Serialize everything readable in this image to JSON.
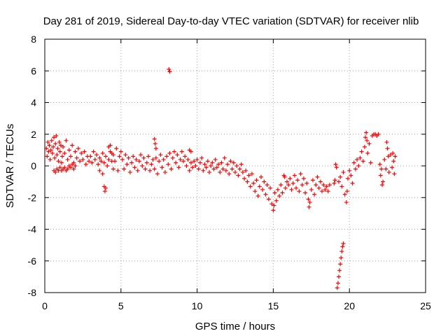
{
  "chart_data": {
    "type": "scatter",
    "title": "Day 281 of 2019, Sidereal Day-to-day VTEC variation (SDTVAR) for receiver nlib",
    "xlabel": "GPS time / hours",
    "ylabel": "SDTVAR / TECUs",
    "xlim": [
      0,
      25
    ],
    "ylim": [
      -8,
      8
    ],
    "xticks": [
      0,
      5,
      10,
      15,
      20,
      25
    ],
    "yticks": [
      -8,
      -6,
      -4,
      -2,
      0,
      2,
      4,
      6,
      8
    ],
    "xtick_labels": [
      "0",
      "5",
      "10",
      "15",
      "20",
      "25"
    ],
    "ytick_labels": [
      "-8",
      "-6",
      "-4",
      "-2",
      "0",
      "2",
      "4",
      "6",
      "8"
    ],
    "grid": true,
    "marker": "+",
    "marker_color": "#ff0000",
    "series": [
      {
        "name": "SDTVAR",
        "points": [
          [
            0.1,
            1.1
          ],
          [
            0.15,
            0.6
          ],
          [
            0.2,
            1.5
          ],
          [
            0.25,
            0.9
          ],
          [
            0.3,
            1.3
          ],
          [
            0.35,
            0.4
          ],
          [
            0.4,
            1.0
          ],
          [
            0.45,
            1.6
          ],
          [
            0.5,
            0.8
          ],
          [
            0.55,
            1.2
          ],
          [
            0.6,
            1.8
          ],
          [
            0.65,
            0.5
          ],
          [
            0.7,
            1.4
          ],
          [
            0.75,
            1.9
          ],
          [
            0.8,
            0.7
          ],
          [
            0.85,
            1.1
          ],
          [
            0.9,
            0.3
          ],
          [
            0.95,
            1.5
          ],
          [
            1.0,
            0.9
          ],
          [
            1.05,
            1.3
          ],
          [
            1.1,
            0.2
          ],
          [
            1.15,
            0.6
          ],
          [
            1.2,
            1.2
          ],
          [
            1.3,
            0.8
          ],
          [
            1.4,
            1.6
          ],
          [
            1.5,
            0.4
          ],
          [
            1.6,
            1.0
          ],
          [
            1.7,
            0.6
          ],
          [
            1.8,
            1.3
          ],
          [
            1.9,
            0.2
          ],
          [
            2.0,
            0.9
          ],
          [
            2.1,
            0.5
          ],
          [
            2.2,
            1.1
          ],
          [
            2.3,
            0.3
          ],
          [
            2.4,
            0.8
          ],
          [
            2.5,
            0.4
          ],
          [
            2.6,
            0.9
          ],
          [
            2.7,
            0.1
          ],
          [
            2.8,
            0.6
          ],
          [
            2.9,
            0.3
          ],
          [
            0.6,
            -0.3
          ],
          [
            0.7,
            -0.4
          ],
          [
            0.8,
            -0.2
          ],
          [
            0.9,
            -0.3
          ],
          [
            1.0,
            -0.1
          ],
          [
            1.1,
            -0.3
          ],
          [
            1.2,
            -0.2
          ],
          [
            1.3,
            -0.1
          ],
          [
            1.4,
            -0.3
          ],
          [
            1.5,
            -0.2
          ],
          [
            1.6,
            0.0
          ],
          [
            1.7,
            -0.1
          ],
          [
            1.8,
            0.1
          ],
          [
            1.9,
            -0.2
          ],
          [
            2.0,
            0.0
          ],
          [
            3.0,
            0.6
          ],
          [
            3.1,
            0.2
          ],
          [
            3.2,
            0.9
          ],
          [
            3.3,
            0.4
          ],
          [
            3.4,
            0.7
          ],
          [
            3.5,
            0.1
          ],
          [
            3.6,
            0.5
          ],
          [
            3.7,
            0.3
          ],
          [
            3.8,
            0.8
          ],
          [
            3.9,
            0.2
          ],
          [
            4.0,
            0.6
          ],
          [
            4.1,
            0.0
          ],
          [
            4.2,
            0.4
          ],
          [
            4.3,
            0.9
          ],
          [
            4.4,
            0.3
          ],
          [
            4.5,
            0.7
          ],
          [
            3.6,
            -0.3
          ],
          [
            3.8,
            -0.5
          ],
          [
            3.9,
            -1.3
          ],
          [
            3.95,
            -1.6
          ],
          [
            4.0,
            -1.4
          ],
          [
            4.2,
            1.2
          ],
          [
            4.3,
            1.3
          ],
          [
            4.4,
            0.8
          ],
          [
            4.5,
            -0.2
          ],
          [
            4.6,
            0.3
          ],
          [
            4.7,
            1.1
          ],
          [
            4.8,
            -0.3
          ],
          [
            4.9,
            0.6
          ],
          [
            5.0,
            0.9
          ],
          [
            5.1,
            0.4
          ],
          [
            5.2,
            -0.2
          ],
          [
            5.3,
            0.7
          ],
          [
            5.4,
            0.1
          ],
          [
            5.5,
            0.5
          ],
          [
            5.6,
            -0.4
          ],
          [
            5.7,
            0.2
          ],
          [
            5.8,
            0.6
          ],
          [
            5.9,
            -0.1
          ],
          [
            6.0,
            0.4
          ],
          [
            6.1,
            -0.3
          ],
          [
            6.2,
            0.3
          ],
          [
            6.3,
            0.7
          ],
          [
            6.4,
            0.0
          ],
          [
            6.5,
            0.5
          ],
          [
            6.6,
            -0.2
          ],
          [
            6.7,
            0.2
          ],
          [
            6.8,
            0.6
          ],
          [
            6.9,
            -0.3
          ],
          [
            7.0,
            0.1
          ],
          [
            7.1,
            0.4
          ],
          [
            7.2,
            1.7
          ],
          [
            7.25,
            1.4
          ],
          [
            7.3,
            1.1
          ],
          [
            7.2,
            -0.2
          ],
          [
            7.3,
            0.5
          ],
          [
            7.4,
            -0.5
          ],
          [
            7.5,
            0.3
          ],
          [
            7.6,
            0.7
          ],
          [
            7.7,
            -0.1
          ],
          [
            7.8,
            0.4
          ],
          [
            7.9,
            -0.4
          ],
          [
            8.0,
            0.6
          ],
          [
            8.1,
            0.1
          ],
          [
            8.2,
            0.8
          ],
          [
            8.3,
            -0.2
          ],
          [
            8.4,
            0.5
          ],
          [
            8.5,
            0.9
          ],
          [
            8.6,
            0.2
          ],
          [
            8.7,
            0.7
          ],
          [
            8.8,
            -0.1
          ],
          [
            8.9,
            0.4
          ],
          [
            9.0,
            0.9
          ],
          [
            9.1,
            0.3
          ],
          [
            9.2,
            0.6
          ],
          [
            9.3,
            0.0
          ],
          [
            9.4,
            0.4
          ],
          [
            8.15,
            6.1
          ],
          [
            8.2,
            5.95
          ],
          [
            9.5,
            1.0
          ],
          [
            9.6,
            0.9
          ],
          [
            9.5,
            -0.3
          ],
          [
            9.6,
            0.2
          ],
          [
            9.7,
            -0.1
          ],
          [
            9.8,
            0.3
          ],
          [
            9.9,
            0.0
          ],
          [
            10.0,
            0.4
          ],
          [
            10.1,
            -0.2
          ],
          [
            10.2,
            0.2
          ],
          [
            10.3,
            0.5
          ],
          [
            10.4,
            -0.3
          ],
          [
            10.5,
            0.1
          ],
          [
            10.6,
            -0.1
          ],
          [
            10.7,
            0.3
          ],
          [
            10.8,
            -0.4
          ],
          [
            10.9,
            0.0
          ],
          [
            11.0,
            0.2
          ],
          [
            11.1,
            -0.2
          ],
          [
            11.2,
            0.4
          ],
          [
            11.3,
            -0.1
          ],
          [
            11.4,
            0.1
          ],
          [
            11.5,
            -0.4
          ],
          [
            11.6,
            0.2
          ],
          [
            11.7,
            -0.2
          ],
          [
            11.8,
            0.5
          ],
          [
            11.9,
            -0.3
          ],
          [
            12.0,
            0.1
          ],
          [
            12.1,
            -0.5
          ],
          [
            12.2,
            0.3
          ],
          [
            12.3,
            -0.2
          ],
          [
            12.4,
            0.2
          ],
          [
            12.5,
            -0.4
          ],
          [
            12.6,
            0.0
          ],
          [
            12.7,
            -0.6
          ],
          [
            12.8,
            -0.2
          ],
          [
            12.9,
            0.1
          ],
          [
            13.0,
            -0.4
          ],
          [
            13.1,
            -0.8
          ],
          [
            13.2,
            -0.3
          ],
          [
            13.3,
            -1.0
          ],
          [
            13.4,
            -0.6
          ],
          [
            13.5,
            -1.3
          ],
          [
            13.6,
            -0.5
          ],
          [
            13.7,
            -1.1
          ],
          [
            13.8,
            -1.6
          ],
          [
            13.9,
            -0.9
          ],
          [
            14.0,
            -1.9
          ],
          [
            14.1,
            -1.3
          ],
          [
            14.2,
            -0.7
          ],
          [
            14.3,
            -1.5
          ],
          [
            14.4,
            -1.0
          ],
          [
            14.5,
            -1.8
          ],
          [
            14.6,
            -1.2
          ],
          [
            14.7,
            -2.1
          ],
          [
            14.8,
            -1.4
          ],
          [
            14.9,
            -2.4
          ],
          [
            15.0,
            -2.8
          ],
          [
            15.05,
            -2.5
          ],
          [
            15.1,
            -1.7
          ],
          [
            15.2,
            -2.2
          ],
          [
            15.3,
            -1.5
          ],
          [
            15.4,
            -1.9
          ],
          [
            15.5,
            -1.2
          ],
          [
            15.6,
            -1.7
          ],
          [
            15.7,
            -0.6
          ],
          [
            15.75,
            -0.7
          ],
          [
            15.8,
            -1.4
          ],
          [
            15.9,
            -1.0
          ],
          [
            16.0,
            -1.2
          ],
          [
            16.1,
            -0.8
          ],
          [
            16.2,
            -1.5
          ],
          [
            16.3,
            -1.1
          ],
          [
            16.4,
            -0.6
          ],
          [
            16.5,
            -1.4
          ],
          [
            16.6,
            -0.9
          ],
          [
            16.7,
            -1.6
          ],
          [
            16.8,
            -0.5
          ],
          [
            16.9,
            -1.2
          ],
          [
            17.0,
            -0.8
          ],
          [
            17.1,
            -1.7
          ],
          [
            17.2,
            -1.1
          ],
          [
            17.3,
            -2.1
          ],
          [
            17.35,
            -2.6
          ],
          [
            17.4,
            -2.3
          ],
          [
            17.5,
            -1.5
          ],
          [
            17.6,
            -0.9
          ],
          [
            17.7,
            -1.8
          ],
          [
            17.8,
            -1.2
          ],
          [
            17.9,
            -0.7
          ],
          [
            18.0,
            -1.4
          ],
          [
            18.1,
            -1.0
          ],
          [
            18.2,
            -1.6
          ],
          [
            18.3,
            -1.2
          ],
          [
            18.4,
            -1.5
          ],
          [
            18.5,
            -1.3
          ],
          [
            18.6,
            -1.6
          ],
          [
            18.7,
            -1.2
          ],
          [
            19.0,
            -1.1
          ],
          [
            19.05,
            -0.9
          ],
          [
            19.1,
            0.1
          ],
          [
            19.15,
            -0.1
          ],
          [
            19.2,
            -7.7
          ],
          [
            19.25,
            -7.4
          ],
          [
            19.3,
            -7.0
          ],
          [
            19.35,
            -6.6
          ],
          [
            19.4,
            -6.2
          ],
          [
            19.45,
            -5.8
          ],
          [
            19.5,
            -5.4
          ],
          [
            19.55,
            -5.1
          ],
          [
            19.6,
            -4.9
          ],
          [
            19.3,
            -1.0
          ],
          [
            19.4,
            -0.7
          ],
          [
            19.5,
            -1.3
          ],
          [
            19.6,
            -0.4
          ],
          [
            19.7,
            -1.8
          ],
          [
            19.8,
            -2.3
          ],
          [
            19.85,
            -1.6
          ],
          [
            19.9,
            -0.8
          ],
          [
            20.0,
            -0.3
          ],
          [
            20.1,
            -0.6
          ],
          [
            20.2,
            -1.1
          ],
          [
            20.3,
            0.2
          ],
          [
            20.4,
            -0.2
          ],
          [
            20.5,
            0.4
          ],
          [
            20.6,
            0.0
          ],
          [
            20.7,
            0.5
          ],
          [
            20.8,
            0.9
          ],
          [
            20.9,
            0.3
          ],
          [
            21.0,
            1.2
          ],
          [
            21.05,
            1.8
          ],
          [
            21.1,
            2.1
          ],
          [
            21.15,
            1.6
          ],
          [
            21.2,
            0.8
          ],
          [
            21.3,
            1.4
          ],
          [
            21.4,
            0.2
          ],
          [
            21.5,
            1.9
          ],
          [
            21.6,
            2.0
          ],
          [
            21.7,
            2.0
          ],
          [
            21.8,
            1.9
          ],
          [
            21.9,
            2.0
          ],
          [
            22.0,
            0.1
          ],
          [
            22.05,
            -0.6
          ],
          [
            22.1,
            -0.2
          ],
          [
            22.15,
            -1.2
          ],
          [
            22.2,
            -1.0
          ],
          [
            22.3,
            0.4
          ],
          [
            22.4,
            -0.2
          ],
          [
            22.45,
            1.5
          ],
          [
            22.5,
            1.1
          ],
          [
            22.55,
            0.6
          ],
          [
            22.6,
            -0.4
          ],
          [
            22.7,
            0.7
          ],
          [
            22.8,
            -0.1
          ],
          [
            22.85,
            0.8
          ],
          [
            22.9,
            0.3
          ],
          [
            22.95,
            -0.5
          ],
          [
            23.0,
            0.6
          ]
        ]
      }
    ]
  }
}
